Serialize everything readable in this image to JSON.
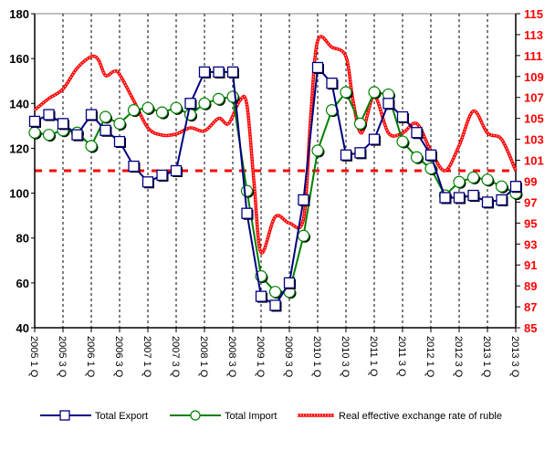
{
  "chart_data": {
    "type": "line",
    "title": "",
    "xlabel": "",
    "ylabel": "",
    "x_categories_count": 35,
    "x_tick_labels": [
      "2005 1 Q",
      "2005 3 Q",
      "2006 1 Q",
      "2006 3 Q",
      "2007 1 Q",
      "2007 3 Q",
      "2008 1 Q",
      "2008 3 Q",
      "2009 1 Q",
      "2009 3 Q",
      "2010 1 Q",
      "2010 3 Q",
      "2011 1 Q",
      "2011 3 Q",
      "2012 1 Q",
      "2012 3 Q",
      "2013 1 Q",
      "2013 3 Q"
    ],
    "ylim_left": [
      40,
      180
    ],
    "yticks_left": [
      40,
      60,
      80,
      100,
      120,
      140,
      160,
      180
    ],
    "ylim_right": [
      85,
      115
    ],
    "yticks_right": [
      85,
      87,
      89,
      91,
      93,
      95,
      97,
      99,
      101,
      103,
      105,
      107,
      109,
      111,
      113,
      115
    ],
    "reference_line_left": 110,
    "legend_position": "bottom",
    "series": [
      {
        "name": "Total Export",
        "axis": "left",
        "color": "#000080",
        "values": [
          132,
          135,
          131,
          126,
          135,
          128,
          123,
          112,
          105,
          108,
          110,
          140,
          154,
          154,
          154,
          91,
          54,
          50,
          60,
          97,
          156,
          149,
          117,
          118,
          124,
          140,
          134,
          127,
          117,
          98,
          98,
          99,
          96,
          97,
          103
        ]
      },
      {
        "name": "Total Import",
        "axis": "left",
        "color": "#008000",
        "values": [
          127,
          126,
          128,
          127,
          121,
          134,
          131,
          137,
          138,
          136,
          138,
          135,
          140,
          142,
          143,
          101,
          63,
          56,
          56,
          81,
          119,
          137,
          145,
          131,
          145,
          144,
          123,
          116,
          111,
          99,
          105,
          107,
          106,
          103,
          100
        ]
      },
      {
        "name": "Real effective exchange rate of ruble",
        "axis": "right",
        "color": "#ff0000",
        "points": [
          [
            0,
            105.8
          ],
          [
            1,
            106.9
          ],
          [
            2,
            107.8
          ],
          [
            3,
            109.8
          ],
          [
            4,
            110.9
          ],
          [
            4.5,
            110.6
          ],
          [
            5,
            109.1
          ],
          [
            5.6,
            109.5
          ],
          [
            6,
            109.2
          ],
          [
            7,
            106.7
          ],
          [
            8,
            104.1
          ],
          [
            9,
            103.4
          ],
          [
            10,
            103.5
          ],
          [
            11,
            104.1
          ],
          [
            12,
            103.8
          ],
          [
            13,
            105.0
          ],
          [
            13.7,
            104.5
          ],
          [
            14.5,
            106.7
          ],
          [
            15,
            106.3
          ],
          [
            15.5,
            98.9
          ],
          [
            16,
            92.2
          ],
          [
            17,
            95.6
          ],
          [
            18,
            95.0
          ],
          [
            19,
            95.4
          ],
          [
            19.5,
            105.0
          ],
          [
            20,
            112.4
          ],
          [
            21,
            111.8
          ],
          [
            22,
            110.9
          ],
          [
            22.5,
            106.7
          ],
          [
            23.1,
            103.6
          ],
          [
            24,
            107.1
          ],
          [
            25,
            103.6
          ],
          [
            26,
            103.6
          ],
          [
            27,
            104.5
          ],
          [
            28,
            101.9
          ],
          [
            29,
            100.0
          ],
          [
            30,
            102.4
          ],
          [
            31,
            105.7
          ],
          [
            32,
            103.6
          ],
          [
            33,
            103.0
          ],
          [
            34,
            100.0
          ]
        ]
      }
    ]
  }
}
